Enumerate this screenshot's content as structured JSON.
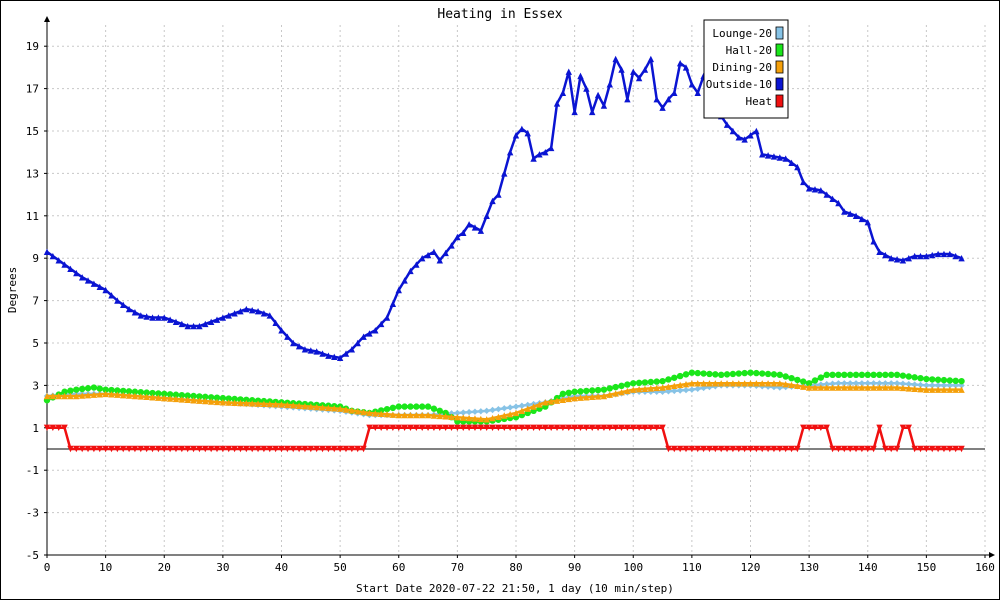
{
  "chart_data": {
    "type": "line",
    "title": "Heating in Essex",
    "xlabel": "Start Date 2020-07-22 21:50, 1 day (10 min/step)",
    "ylabel": "Degrees",
    "xlim": [
      0,
      160
    ],
    "ylim": [
      -5,
      20
    ],
    "x_ticks": [
      0,
      10,
      20,
      30,
      40,
      50,
      60,
      70,
      80,
      90,
      100,
      110,
      120,
      130,
      140,
      150,
      160
    ],
    "y_ticks": [
      -5,
      -3,
      -1,
      1,
      3,
      5,
      7,
      9,
      11,
      13,
      15,
      17,
      19
    ],
    "grid": true,
    "legend_position": "top-right",
    "series": [
      {
        "name": "Lounge-20",
        "color": "#87c3e6",
        "marker": "diamond",
        "points": [
          [
            0,
            2.5
          ],
          [
            5,
            2.6
          ],
          [
            10,
            2.6
          ],
          [
            20,
            2.4
          ],
          [
            30,
            2.2
          ],
          [
            40,
            2.0
          ],
          [
            50,
            1.8
          ],
          [
            55,
            1.6
          ],
          [
            60,
            1.6
          ],
          [
            65,
            1.6
          ],
          [
            70,
            1.7
          ],
          [
            75,
            1.8
          ],
          [
            80,
            2.0
          ],
          [
            85,
            2.2
          ],
          [
            90,
            2.5
          ],
          [
            95,
            2.5
          ],
          [
            100,
            2.7
          ],
          [
            105,
            2.7
          ],
          [
            110,
            2.8
          ],
          [
            115,
            3.0
          ],
          [
            120,
            3.0
          ],
          [
            125,
            2.9
          ],
          [
            130,
            3.0
          ],
          [
            135,
            3.1
          ],
          [
            140,
            3.1
          ],
          [
            145,
            3.1
          ],
          [
            150,
            3.0
          ],
          [
            156,
            3.0
          ]
        ]
      },
      {
        "name": "Hall-20",
        "color": "#1ae61a",
        "marker": "circle",
        "points": [
          [
            0,
            2.3
          ],
          [
            3,
            2.7
          ],
          [
            5,
            2.8
          ],
          [
            8,
            2.9
          ],
          [
            10,
            2.8
          ],
          [
            15,
            2.7
          ],
          [
            20,
            2.6
          ],
          [
            30,
            2.4
          ],
          [
            40,
            2.2
          ],
          [
            45,
            2.1
          ],
          [
            50,
            2.0
          ],
          [
            52,
            1.8
          ],
          [
            55,
            1.7
          ],
          [
            60,
            2.0
          ],
          [
            65,
            2.0
          ],
          [
            68,
            1.7
          ],
          [
            70,
            1.3
          ],
          [
            75,
            1.3
          ],
          [
            80,
            1.5
          ],
          [
            85,
            2.0
          ],
          [
            88,
            2.6
          ],
          [
            90,
            2.7
          ],
          [
            95,
            2.8
          ],
          [
            100,
            3.1
          ],
          [
            105,
            3.2
          ],
          [
            110,
            3.6
          ],
          [
            115,
            3.5
          ],
          [
            120,
            3.6
          ],
          [
            125,
            3.5
          ],
          [
            130,
            3.1
          ],
          [
            133,
            3.5
          ],
          [
            140,
            3.5
          ],
          [
            145,
            3.5
          ],
          [
            150,
            3.3
          ],
          [
            156,
            3.2
          ]
        ]
      },
      {
        "name": "Dining-20",
        "color": "#f5a00a",
        "marker": "triangle",
        "points": [
          [
            0,
            2.5
          ],
          [
            5,
            2.5
          ],
          [
            10,
            2.6
          ],
          [
            20,
            2.4
          ],
          [
            30,
            2.2
          ],
          [
            40,
            2.1
          ],
          [
            45,
            2.0
          ],
          [
            50,
            1.9
          ],
          [
            55,
            1.7
          ],
          [
            60,
            1.6
          ],
          [
            65,
            1.6
          ],
          [
            70,
            1.5
          ],
          [
            75,
            1.4
          ],
          [
            80,
            1.7
          ],
          [
            85,
            2.2
          ],
          [
            90,
            2.4
          ],
          [
            95,
            2.5
          ],
          [
            100,
            2.8
          ],
          [
            105,
            2.9
          ],
          [
            110,
            3.1
          ],
          [
            115,
            3.1
          ],
          [
            120,
            3.1
          ],
          [
            125,
            3.1
          ],
          [
            130,
            2.9
          ],
          [
            135,
            2.9
          ],
          [
            140,
            2.9
          ],
          [
            145,
            2.9
          ],
          [
            150,
            2.8
          ],
          [
            156,
            2.8
          ]
        ]
      },
      {
        "name": "Outside-10",
        "color": "#0a14d2",
        "marker": "triangle",
        "points": [
          [
            0,
            9.3
          ],
          [
            2,
            8.9
          ],
          [
            4,
            8.5
          ],
          [
            6,
            8.1
          ],
          [
            8,
            7.8
          ],
          [
            10,
            7.5
          ],
          [
            12,
            7.0
          ],
          [
            14,
            6.6
          ],
          [
            16,
            6.3
          ],
          [
            18,
            6.2
          ],
          [
            20,
            6.2
          ],
          [
            22,
            6.0
          ],
          [
            24,
            5.8
          ],
          [
            26,
            5.8
          ],
          [
            28,
            6.0
          ],
          [
            30,
            6.2
          ],
          [
            32,
            6.4
          ],
          [
            34,
            6.6
          ],
          [
            36,
            6.5
          ],
          [
            38,
            6.3
          ],
          [
            40,
            5.6
          ],
          [
            42,
            5.0
          ],
          [
            44,
            4.7
          ],
          [
            46,
            4.6
          ],
          [
            48,
            4.4
          ],
          [
            50,
            4.3
          ],
          [
            52,
            4.7
          ],
          [
            54,
            5.3
          ],
          [
            56,
            5.6
          ],
          [
            58,
            6.2
          ],
          [
            60,
            7.5
          ],
          [
            62,
            8.4
          ],
          [
            64,
            9.0
          ],
          [
            66,
            9.3
          ],
          [
            67,
            8.9
          ],
          [
            69,
            9.6
          ],
          [
            70,
            10.0
          ],
          [
            71,
            10.2
          ],
          [
            72,
            10.6
          ],
          [
            74,
            10.3
          ],
          [
            75,
            11.0
          ],
          [
            76,
            11.7
          ],
          [
            77,
            12.0
          ],
          [
            78,
            13.0
          ],
          [
            79,
            14.0
          ],
          [
            80,
            14.8
          ],
          [
            81,
            15.1
          ],
          [
            82,
            14.9
          ],
          [
            83,
            13.7
          ],
          [
            84,
            13.9
          ],
          [
            85,
            14.0
          ],
          [
            86,
            14.2
          ],
          [
            87,
            16.3
          ],
          [
            88,
            16.8
          ],
          [
            89,
            17.8
          ],
          [
            90,
            15.9
          ],
          [
            91,
            17.6
          ],
          [
            92,
            17.0
          ],
          [
            93,
            15.9
          ],
          [
            94,
            16.7
          ],
          [
            95,
            16.2
          ],
          [
            96,
            17.2
          ],
          [
            97,
            18.4
          ],
          [
            98,
            17.9
          ],
          [
            99,
            16.5
          ],
          [
            100,
            17.8
          ],
          [
            101,
            17.5
          ],
          [
            102,
            17.9
          ],
          [
            103,
            18.4
          ],
          [
            104,
            16.5
          ],
          [
            105,
            16.1
          ],
          [
            106,
            16.5
          ],
          [
            107,
            16.8
          ],
          [
            108,
            18.2
          ],
          [
            109,
            18.0
          ],
          [
            110,
            17.2
          ],
          [
            111,
            16.8
          ],
          [
            112,
            17.6
          ],
          [
            113,
            16.9
          ],
          [
            114,
            16.0
          ],
          [
            115,
            15.7
          ],
          [
            116,
            15.3
          ],
          [
            117,
            15.0
          ],
          [
            118,
            14.7
          ],
          [
            119,
            14.6
          ],
          [
            120,
            14.8
          ],
          [
            121,
            15.0
          ],
          [
            122,
            13.9
          ],
          [
            124,
            13.8
          ],
          [
            126,
            13.7
          ],
          [
            128,
            13.3
          ],
          [
            129,
            12.6
          ],
          [
            130,
            12.3
          ],
          [
            132,
            12.2
          ],
          [
            134,
            11.8
          ],
          [
            135,
            11.6
          ],
          [
            136,
            11.2
          ],
          [
            138,
            11.0
          ],
          [
            140,
            10.7
          ],
          [
            141,
            9.8
          ],
          [
            142,
            9.3
          ],
          [
            144,
            9.0
          ],
          [
            146,
            8.9
          ],
          [
            148,
            9.1
          ],
          [
            150,
            9.1
          ],
          [
            152,
            9.2
          ],
          [
            154,
            9.2
          ],
          [
            156,
            9.0
          ]
        ]
      },
      {
        "name": "Heat",
        "color": "#f01010",
        "marker": "triangle-down",
        "step": true,
        "points": [
          [
            0,
            1
          ],
          [
            3,
            1
          ],
          [
            4,
            0
          ],
          [
            54,
            0
          ],
          [
            55,
            1
          ],
          [
            105,
            1
          ],
          [
            106,
            0
          ],
          [
            128,
            0
          ],
          [
            129,
            1
          ],
          [
            133,
            1
          ],
          [
            134,
            0
          ],
          [
            141,
            0
          ],
          [
            142,
            1
          ],
          [
            143,
            0
          ],
          [
            145,
            0
          ],
          [
            146,
            1
          ],
          [
            147,
            1
          ],
          [
            148,
            0
          ],
          [
            156,
            0
          ]
        ]
      }
    ]
  }
}
